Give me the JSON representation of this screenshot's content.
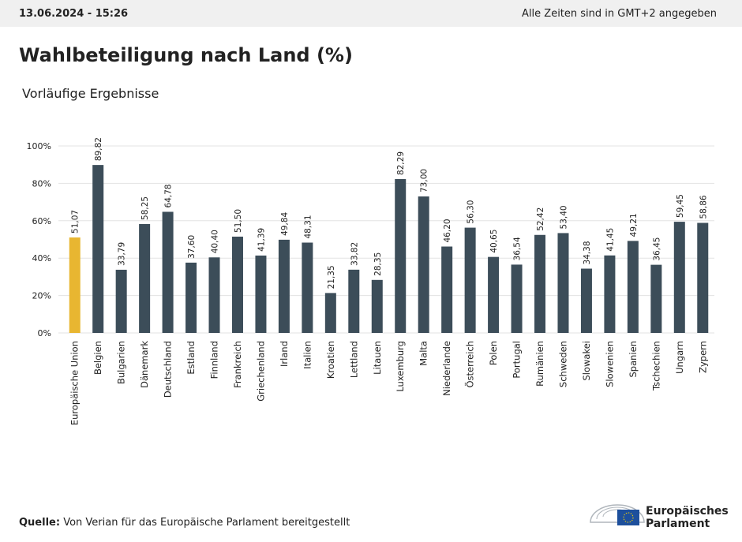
{
  "header": {
    "timestamp": "13.06.2024 - 15:26",
    "timezone_note": "Alle Zeiten sind in GMT+2 angegeben"
  },
  "chart_data": {
    "type": "bar",
    "title": "Wahlbeteiligung nach Land (%)",
    "subtitle": "Vorläufige Ergebnisse",
    "categories": [
      "Europäische Union",
      "Belgien",
      "Bulgarien",
      "Dänemark",
      "Deutschland",
      "Estland",
      "Finnland",
      "Frankreich",
      "Griechenland",
      "Irland",
      "Italien",
      "Kroatien",
      "Lettland",
      "Litauen",
      "Luxemburg",
      "Malta",
      "Niederlande",
      "Österreich",
      "Polen",
      "Portugal",
      "Rumänien",
      "Schweden",
      "Slowakei",
      "Slowenien",
      "Spanien",
      "Tschechien",
      "Ungarn",
      "Zypern"
    ],
    "values": [
      51.07,
      89.82,
      33.79,
      58.25,
      64.78,
      37.6,
      40.4,
      51.5,
      41.39,
      49.84,
      48.31,
      21.35,
      33.82,
      28.35,
      82.29,
      73.0,
      46.2,
      56.3,
      40.65,
      36.54,
      52.42,
      53.4,
      34.38,
      41.45,
      49.21,
      36.45,
      59.45,
      58.86
    ],
    "value_labels": [
      "51,07",
      "89,82",
      "33,79",
      "58,25",
      "64,78",
      "37,60",
      "40,40",
      "51,50",
      "41,39",
      "49,84",
      "48,31",
      "21,35",
      "33,82",
      "28,35",
      "82,29",
      "73,00",
      "46,20",
      "56,30",
      "40,65",
      "36,54",
      "52,42",
      "53,40",
      "34,38",
      "41,45",
      "49,21",
      "36,45",
      "59,45",
      "58,86"
    ],
    "colors": [
      "#e8b631",
      "#3c4d59",
      "#3c4d59",
      "#3c4d59",
      "#3c4d59",
      "#3c4d59",
      "#3c4d59",
      "#3c4d59",
      "#3c4d59",
      "#3c4d59",
      "#3c4d59",
      "#3c4d59",
      "#3c4d59",
      "#3c4d59",
      "#3c4d59",
      "#3c4d59",
      "#3c4d59",
      "#3c4d59",
      "#3c4d59",
      "#3c4d59",
      "#3c4d59",
      "#3c4d59",
      "#3c4d59",
      "#3c4d59",
      "#3c4d59",
      "#3c4d59",
      "#3c4d59",
      "#3c4d59"
    ],
    "ylim": [
      0,
      100
    ],
    "yticks": [
      {
        "value": 0,
        "label": "0%"
      },
      {
        "value": 20,
        "label": "20%"
      },
      {
        "value": 40,
        "label": "40%"
      },
      {
        "value": 60,
        "label": "60%"
      },
      {
        "value": 80,
        "label": "80%"
      },
      {
        "value": 100,
        "label": "100%"
      }
    ],
    "grid": true
  },
  "footer": {
    "source_label": "Quelle:",
    "source_text": "Von Verian für das Europäische Parlament bereitgestellt",
    "logo_lines": [
      "Europäisches",
      "Parlament"
    ]
  }
}
